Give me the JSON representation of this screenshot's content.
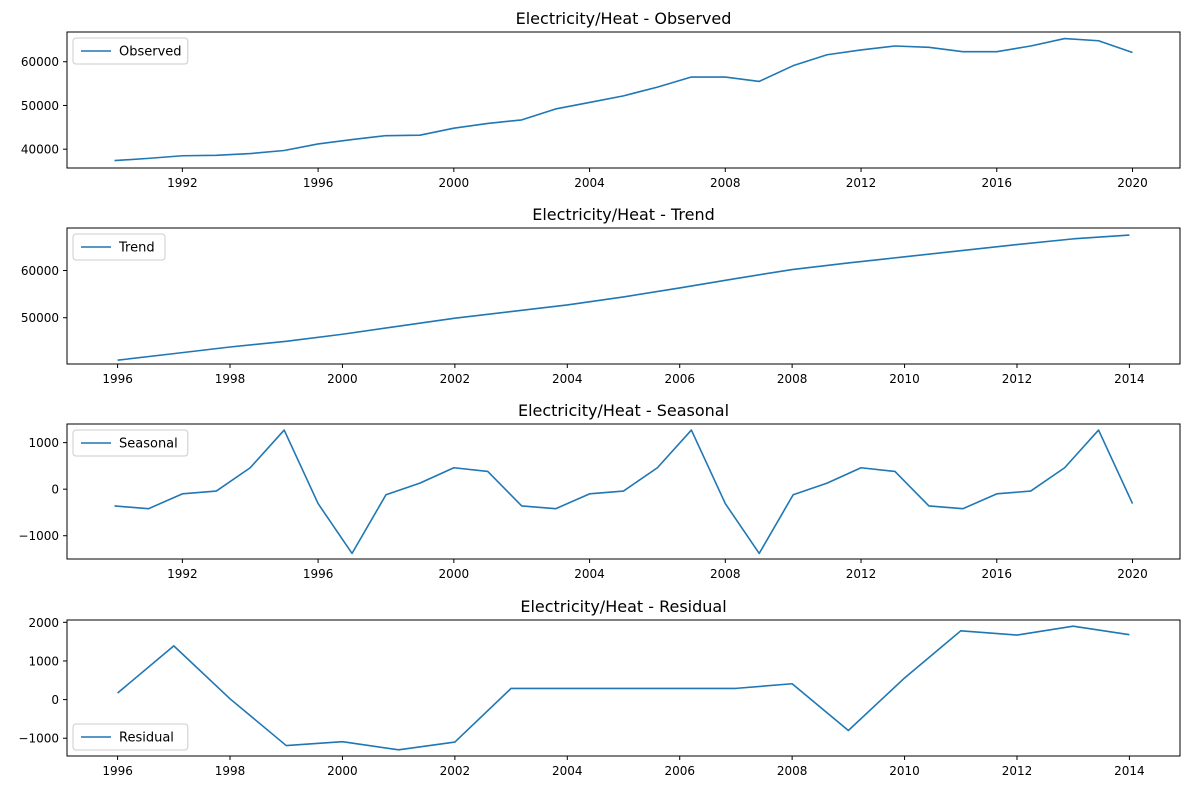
{
  "chart_data": [
    {
      "type": "line",
      "title": "Electricity/Heat  - Observed",
      "x": [
        1990,
        1991,
        1992,
        1993,
        1994,
        1995,
        1996,
        1997,
        1998,
        1999,
        2000,
        2001,
        2002,
        2003,
        2004,
        2005,
        2006,
        2007,
        2008,
        2009,
        2010,
        2011,
        2012,
        2013,
        2014,
        2015,
        2016,
        2017,
        2018,
        2019,
        2020
      ],
      "series": [
        {
          "name": "Observed",
          "values": [
            37400,
            37900,
            38500,
            38600,
            39000,
            39700,
            41200,
            42200,
            43100,
            43200,
            44800,
            45900,
            46700,
            49200,
            50700,
            52200,
            54200,
            56500,
            56500,
            55500,
            59100,
            61600,
            62700,
            63600,
            63300,
            62300,
            62300,
            63600,
            65300,
            64800,
            62100
          ]
        }
      ],
      "xlim": [
        1988.6,
        2021.4
      ],
      "ylim": [
        35700,
        66800
      ],
      "xticks": [
        1992,
        1996,
        2000,
        2004,
        2008,
        2012,
        2016,
        2020
      ],
      "yticks": [
        40000,
        50000,
        60000
      ],
      "xlabel": "",
      "ylabel": "",
      "legend": "upper-left",
      "grid": false,
      "color": "#1f77b4"
    },
    {
      "type": "line",
      "title": "Electricity/Heat  - Trend",
      "x": [
        1996,
        1997,
        1998,
        1999,
        2000,
        2001,
        2002,
        2003,
        2004,
        2005,
        2006,
        2007,
        2008,
        2009,
        2010,
        2011,
        2012,
        2013,
        2014
      ],
      "series": [
        {
          "name": "Trend",
          "values": [
            41000,
            42400,
            43800,
            45000,
            46500,
            48200,
            49900,
            51300,
            52700,
            54400,
            56300,
            58300,
            60200,
            61600,
            62900,
            64200,
            65500,
            66700,
            67500
          ]
        }
      ],
      "xlim": [
        1995.1,
        2014.9
      ],
      "ylim": [
        40200,
        69000
      ],
      "xticks": [
        1996,
        1998,
        2000,
        2002,
        2004,
        2006,
        2008,
        2010,
        2012,
        2014
      ],
      "yticks": [
        50000,
        60000
      ],
      "xlabel": "",
      "ylabel": "",
      "legend": "upper-left",
      "grid": false,
      "color": "#1f77b4"
    },
    {
      "type": "line",
      "title": "Electricity/Heat  - Seasonal",
      "x": [
        1990,
        1991,
        1992,
        1993,
        1994,
        1995,
        1996,
        1997,
        1998,
        1999,
        2000,
        2001,
        2002,
        2003,
        2004,
        2005,
        2006,
        2007,
        2008,
        2009,
        2010,
        2011,
        2012,
        2013,
        2014,
        2015,
        2016,
        2017,
        2018,
        2019,
        2020
      ],
      "series": [
        {
          "name": "Seasonal",
          "values": [
            -360,
            -420,
            -100,
            -40,
            460,
            1270,
            -310,
            -1380,
            -120,
            130,
            460,
            380,
            -360,
            -420,
            -100,
            -40,
            460,
            1270,
            -310,
            -1380,
            -120,
            130,
            460,
            380,
            -360,
            -420,
            -100,
            -40,
            460,
            1270,
            -310
          ]
        }
      ],
      "xlim": [
        1988.6,
        2021.4
      ],
      "ylim": [
        -1500,
        1400
      ],
      "xticks": [
        1992,
        1996,
        2000,
        2004,
        2008,
        2012,
        2016,
        2020
      ],
      "yticks": [
        -1000,
        0,
        1000
      ],
      "xlabel": "",
      "ylabel": "",
      "legend": "upper-left",
      "grid": false,
      "color": "#1f77b4"
    },
    {
      "type": "line",
      "title": "Electricity/Heat  - Residual",
      "x": [
        1996,
        1997,
        1998,
        1999,
        2000,
        2001,
        2002,
        2003,
        2004,
        2005,
        2006,
        2007,
        2008,
        2009,
        2010,
        2011,
        2012,
        2013,
        2014
      ],
      "series": [
        {
          "name": "Residual",
          "values": [
            170,
            1390,
            20,
            -1190,
            -1090,
            -1300,
            -1100,
            290,
            290,
            290,
            290,
            290,
            410,
            -800,
            560,
            1780,
            1670,
            1900,
            1680
          ]
        }
      ],
      "xlim": [
        1995.1,
        2014.9
      ],
      "ylim": [
        -1460,
        2060
      ],
      "xticks": [
        1996,
        1998,
        2000,
        2002,
        2004,
        2006,
        2008,
        2010,
        2012,
        2014
      ],
      "yticks": [
        -1000,
        0,
        1000,
        2000
      ],
      "xlabel": "",
      "ylabel": "",
      "legend": "lower-left",
      "grid": false,
      "color": "#1f77b4"
    }
  ]
}
